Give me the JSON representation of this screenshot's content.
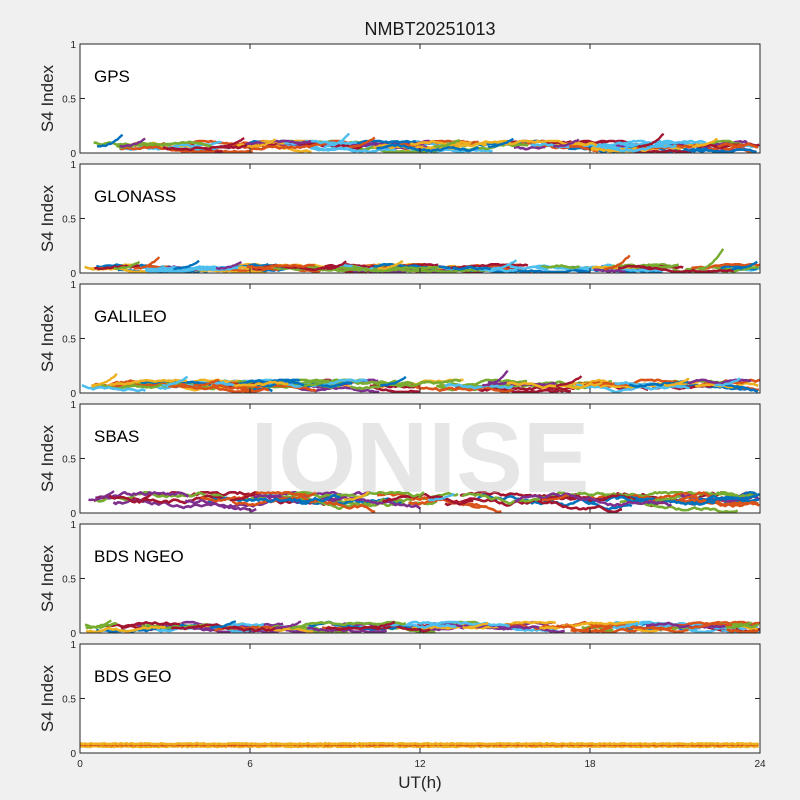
{
  "chart_data": {
    "type": "line",
    "title": "NMBT20251013",
    "xlabel": "UT(h)",
    "ylabel": "S4 Index",
    "xlim": [
      0,
      24
    ],
    "ylim": [
      0,
      1
    ],
    "xticks": [
      "0",
      "6",
      "12",
      "18",
      "24"
    ],
    "yticks": [
      "0",
      "0.5",
      "1"
    ],
    "watermark": "IONISE",
    "grid": false,
    "series_colors": [
      "#0072bd",
      "#d95319",
      "#edb120",
      "#7e2f8e",
      "#77ac30",
      "#4dbeee",
      "#a2142f"
    ],
    "panels": [
      {
        "name": "GPS",
        "baseline": 0.06,
        "amplitude": 0.05,
        "peaks": [
          [
            1.3,
            0.18
          ],
          [
            2.1,
            0.14
          ],
          [
            5.6,
            0.15
          ],
          [
            6.7,
            0.13
          ],
          [
            9.3,
            0.19
          ],
          [
            10.2,
            0.15
          ],
          [
            13.2,
            0.13
          ],
          [
            15.1,
            0.14
          ],
          [
            17.4,
            0.13
          ],
          [
            20.4,
            0.19
          ],
          [
            22.3,
            0.14
          ]
        ]
      },
      {
        "name": "GLONASS",
        "baseline": 0.04,
        "amplitude": 0.04,
        "peaks": [
          [
            2.6,
            0.16
          ],
          [
            1.9,
            0.11
          ],
          [
            4.0,
            0.12
          ],
          [
            5.5,
            0.11
          ],
          [
            9.2,
            0.11
          ],
          [
            11.2,
            0.12
          ],
          [
            15.2,
            0.13
          ],
          [
            19.2,
            0.18
          ],
          [
            22.5,
            0.25
          ],
          [
            23.7,
            0.11
          ]
        ]
      },
      {
        "name": "GALILEO",
        "baseline": 0.07,
        "amplitude": 0.05,
        "peaks": [
          [
            1.1,
            0.19
          ],
          [
            3.6,
            0.16
          ],
          [
            4.7,
            0.13
          ],
          [
            8.6,
            0.12
          ],
          [
            11.3,
            0.16
          ],
          [
            14.9,
            0.22
          ],
          [
            17.5,
            0.17
          ],
          [
            21.3,
            0.14
          ],
          [
            23.1,
            0.14
          ]
        ]
      },
      {
        "name": "SBAS",
        "baseline": 0.12,
        "amplitude": 0.07,
        "peaks": [
          [
            1.0,
            0.21
          ],
          [
            6.0,
            0.2
          ],
          [
            10.0,
            0.2
          ],
          [
            13.0,
            0.18
          ],
          [
            17.0,
            0.17
          ],
          [
            21.0,
            0.16
          ]
        ]
      },
      {
        "name": "BDS NGEO",
        "baseline": 0.05,
        "amplitude": 0.05,
        "peaks": [
          [
            0.9,
            0.12
          ],
          [
            5.3,
            0.12
          ],
          [
            7.6,
            0.11
          ],
          [
            10.9,
            0.11
          ],
          [
            14.2,
            0.1
          ],
          [
            19.5,
            0.1
          ],
          [
            22.2,
            0.1
          ],
          [
            23.5,
            0.1
          ]
        ]
      },
      {
        "name": "BDS GEO",
        "baseline": 0.07,
        "amplitude": 0.025,
        "peaks": []
      }
    ]
  }
}
